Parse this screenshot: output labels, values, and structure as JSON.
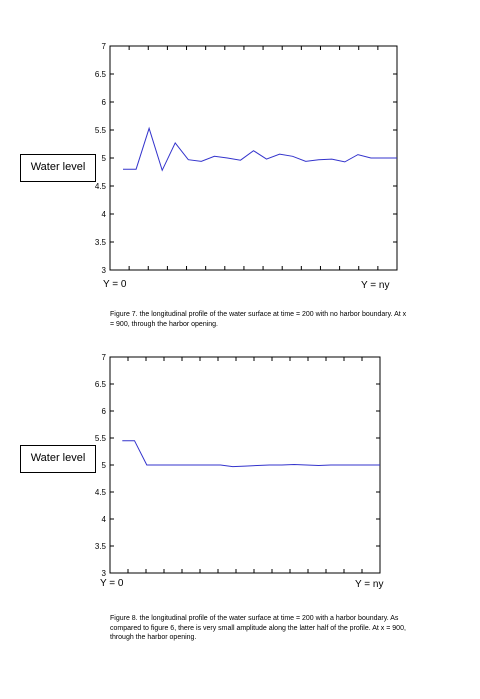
{
  "chart_data": [
    {
      "type": "line",
      "ylabel": "Water level",
      "x_start_label": "Y = 0",
      "x_end_label": "Y = ny",
      "ylim": [
        3,
        7
      ],
      "yticks": [
        "3",
        "3.5",
        "4",
        "4.5",
        "5",
        "5.5",
        "6",
        "6.5",
        "7"
      ],
      "xlim": [
        0,
        22
      ],
      "series": [
        {
          "x": [
            1,
            2,
            3,
            4,
            5,
            6,
            7,
            8,
            9,
            10,
            11,
            12,
            13,
            14,
            15,
            16,
            17,
            18,
            19,
            20,
            21,
            22
          ],
          "values": [
            4.8,
            4.8,
            5.53,
            4.78,
            5.27,
            4.97,
            4.94,
            5.03,
            5.0,
            4.96,
            5.13,
            4.98,
            5.07,
            5.03,
            4.94,
            4.97,
            4.98,
            4.93,
            5.06,
            5.0,
            5.0,
            5.0
          ]
        }
      ],
      "caption": "Figure 7.  the longitudinal profile of the water surface at time = 200 with no harbor boundary. At x = 900, through the harbor opening."
    },
    {
      "type": "line",
      "ylabel": "Water level",
      "x_start_label": "Y = 0",
      "x_end_label": "Y = ny",
      "ylim": [
        3,
        7
      ],
      "yticks": [
        "3",
        "3.5",
        "4",
        "4.5",
        "5",
        "5.5",
        "6",
        "6.5",
        "7"
      ],
      "xlim": [
        0,
        22
      ],
      "series": [
        {
          "x": [
            1,
            2,
            3,
            4,
            5,
            6,
            7,
            8,
            9,
            10,
            11,
            12,
            13,
            14,
            15,
            16,
            17,
            18,
            19,
            20,
            21,
            22
          ],
          "values": [
            5.45,
            5.45,
            5.0,
            5.0,
            5.0,
            5.0,
            5.0,
            5.0,
            5.0,
            4.97,
            4.98,
            4.99,
            5.0,
            5.0,
            5.01,
            5.0,
            4.99,
            5.0,
            5.0,
            5.0,
            5.0,
            5.0
          ]
        }
      ],
      "caption": "Figure 8.  the longitudinal profile of the water surface at time = 200 with a harbor boundary.  As compared to figure 6, there is very small amplitude along the latter half of the profile. At x = 900, through the harbor opening."
    }
  ]
}
